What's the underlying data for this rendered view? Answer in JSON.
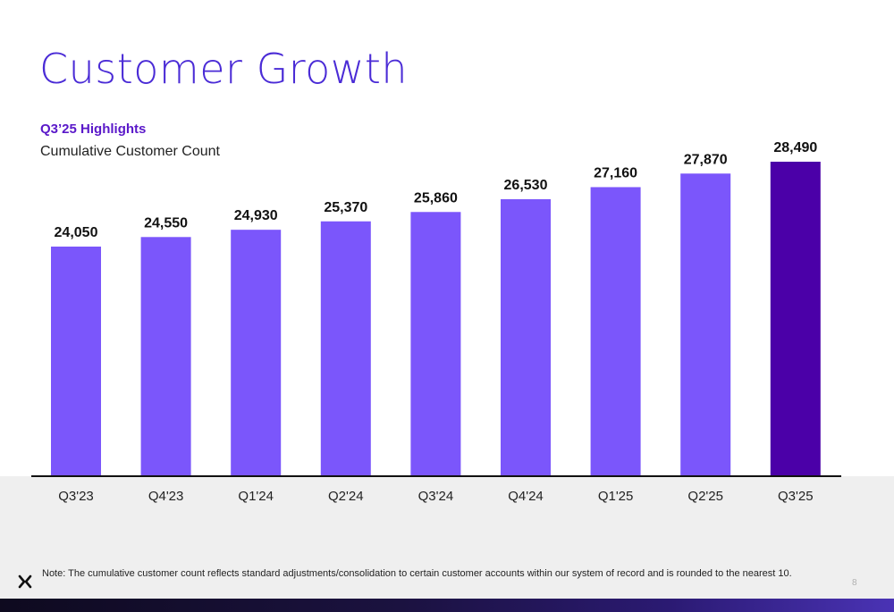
{
  "title": "Customer Growth",
  "subtitle": "Q3’25 Highlights",
  "chart_caption": "Cumulative Customer Count",
  "note": "Note: The cumulative customer count reflects standard adjustments/consolidation to certain customer accounts within our system of record and is rounded to the nearest 10.",
  "page_number": "8",
  "logo": "x-logo-icon",
  "colors": {
    "bar": "#7b56fb",
    "bar_highlight": "#4b00a8",
    "title": "#4a2bd6",
    "subtitle": "#5a18c9"
  },
  "chart_data": {
    "type": "bar",
    "title": "Cumulative Customer Count",
    "categories": [
      "Q3'23",
      "Q4'23",
      "Q1'24",
      "Q2'24",
      "Q3'24",
      "Q4'24",
      "Q1'25",
      "Q2'25",
      "Q3'25"
    ],
    "values": [
      24050,
      24550,
      24930,
      25370,
      25860,
      26530,
      27160,
      27870,
      28490
    ],
    "value_labels": [
      "24,050",
      "24,550",
      "24,930",
      "25,370",
      "25,860",
      "26,530",
      "27,160",
      "27,870",
      "28,490"
    ],
    "highlight_index": 8,
    "grid": false,
    "legend": "none",
    "xlabel": "",
    "ylabel": ""
  }
}
